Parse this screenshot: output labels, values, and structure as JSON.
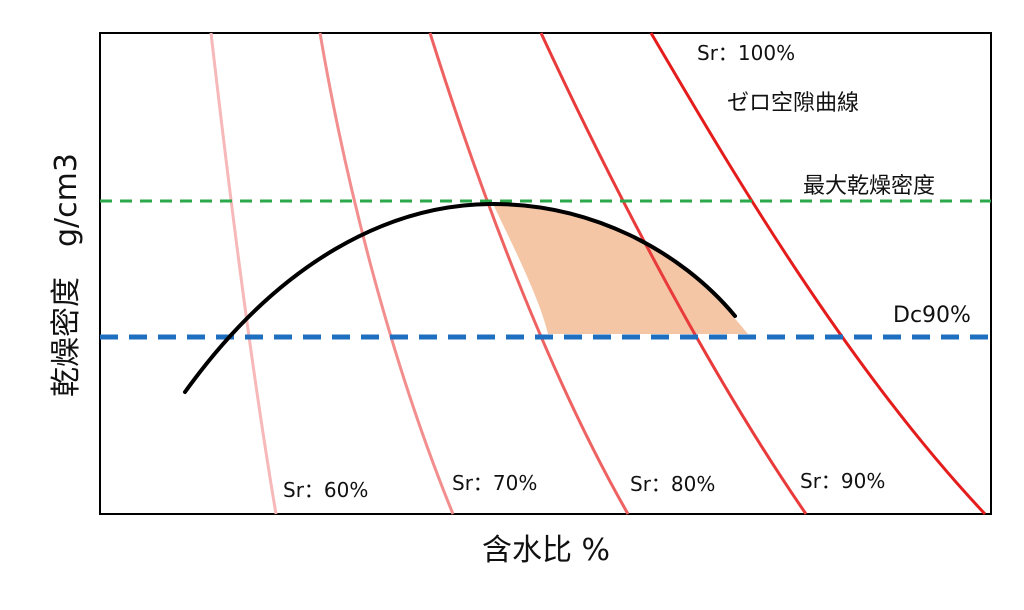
{
  "labels": {
    "x_axis": "含水比 %",
    "y_axis": "乾燥密度　g/cm3",
    "sr_100": "Sr：100%",
    "zero_air_void": "ゼロ空隙曲線",
    "max_dry_density": "最大乾燥密度",
    "dc90": "Dc90%",
    "sr_60": "Sr：60%",
    "sr_70": "Sr：70%",
    "sr_80": "Sr：80%",
    "sr_90": "Sr：90%"
  },
  "colors": {
    "compaction_curve": "#000000",
    "max_dry_density_line": "#2aa84a",
    "dc90_line": "#1f6fc0",
    "shaded_region": "#f5c6a5",
    "sr_60": "#f6b8b8",
    "sr_70": "#f28e8e",
    "sr_80": "#ee6262",
    "sr_90": "#e93b3b",
    "sr_100": "#e41c1c"
  }
}
